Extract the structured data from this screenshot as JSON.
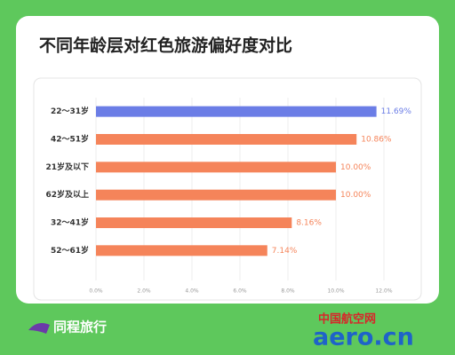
{
  "chart_data": {
    "type": "barh",
    "title": "不同年龄层对红色旅游偏好度对比",
    "categories": [
      "22～31岁",
      "42～51岁",
      "21岁及以下",
      "62岁及以上",
      "32～41岁",
      "52～61岁"
    ],
    "values": [
      11.69,
      10.86,
      10.0,
      10.0,
      8.16,
      7.14
    ],
    "value_labels": [
      "11.69%",
      "10.86%",
      "10.00%",
      "10.00%",
      "8.16%",
      "7.14%"
    ],
    "colors": [
      "#6b7de6",
      "#f5845a",
      "#f5845a",
      "#f5845a",
      "#f5845a",
      "#f5845a"
    ],
    "xlim": [
      0,
      12
    ],
    "xticks": [
      {
        "value": 0,
        "label": "0.0%"
      },
      {
        "value": 2,
        "label": "2.0%"
      },
      {
        "value": 4,
        "label": "4.0%"
      },
      {
        "value": 6,
        "label": "6.0%"
      },
      {
        "value": 8,
        "label": "8.0%"
      },
      {
        "value": 10,
        "label": "10.0%"
      },
      {
        "value": 12,
        "label": "12.0%"
      }
    ],
    "grid": true
  },
  "footer": {
    "brand": "同程旅行",
    "watermark_cn": "中国航空网",
    "watermark_en": "aero.cn"
  }
}
